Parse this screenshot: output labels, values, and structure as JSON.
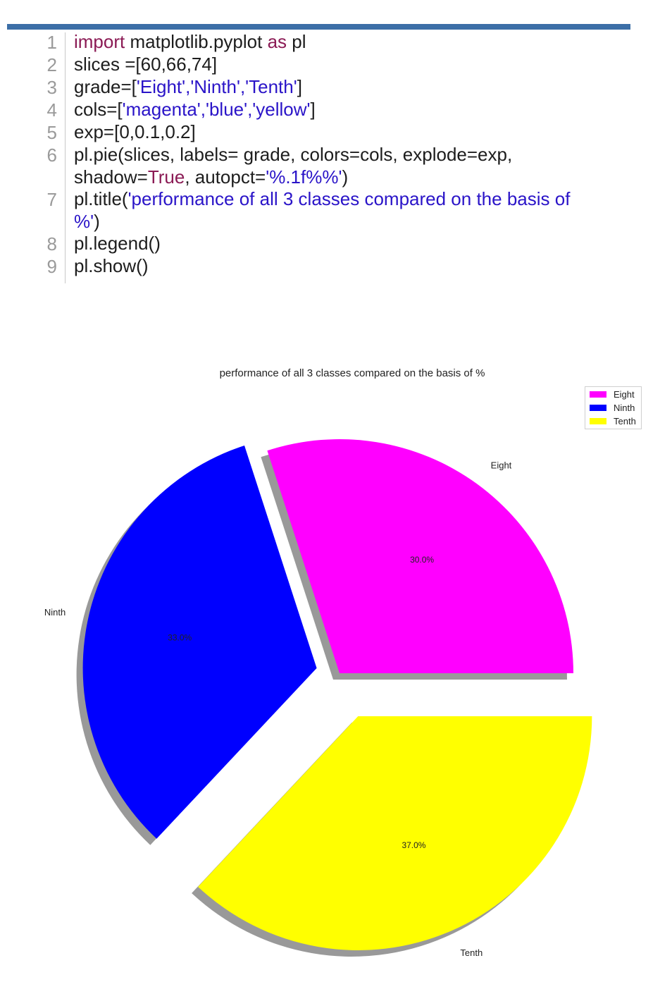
{
  "code": {
    "line_numbers": [
      "1",
      "2",
      "3",
      "4",
      "5",
      "6",
      "7",
      "8",
      "9"
    ],
    "lines": [
      [
        {
          "k": "kw",
          "t": "import"
        },
        {
          "k": "",
          "t": " matplotlib.pyplot "
        },
        {
          "k": "kw",
          "t": "as"
        },
        {
          "k": "",
          "t": " pl"
        }
      ],
      [
        {
          "k": "",
          "t": "slices =[60,66,74]"
        }
      ],
      [
        {
          "k": "",
          "t": "grade=["
        },
        {
          "k": "st",
          "t": "'Eight','Ninth','Tenth'"
        },
        {
          "k": "",
          "t": "]"
        }
      ],
      [
        {
          "k": "",
          "t": "cols=["
        },
        {
          "k": "st",
          "t": "'magenta','blue','yellow'"
        },
        {
          "k": "",
          "t": "]"
        }
      ],
      [
        {
          "k": "",
          "t": "exp=[0,0.1,0.2]"
        }
      ],
      [
        {
          "k": "",
          "t": "pl.pie(slices, labels= grade, colors=cols, explode=exp,\nshadow="
        },
        {
          "k": "kw",
          "t": "True"
        },
        {
          "k": "",
          "t": ", autopct="
        },
        {
          "k": "st",
          "t": "'%.1f%%'"
        },
        {
          "k": "",
          "t": ")"
        }
      ],
      [
        {
          "k": "",
          "t": "pl.title("
        },
        {
          "k": "st",
          "t": "'performance of all 3 classes compared on the basis of\n%'"
        },
        {
          "k": "",
          "t": ")"
        }
      ],
      [
        {
          "k": "",
          "t": "pl.legend()"
        }
      ],
      [
        {
          "k": "",
          "t": "pl.show()"
        }
      ]
    ]
  },
  "chart_data": {
    "type": "pie",
    "title": "performance of all 3 classes compared on the basis of %",
    "categories": [
      "Eight",
      "Ninth",
      "Tenth"
    ],
    "values": [
      60,
      66,
      74
    ],
    "autopct": [
      "30.0%",
      "33.0%",
      "37.0%"
    ],
    "colors": [
      "#ff00ff",
      "#0000ff",
      "#ffff00"
    ],
    "explode": [
      0,
      0.1,
      0.2
    ],
    "shadow": true,
    "legend": {
      "placement": "top-right",
      "entries": [
        "Eight",
        "Ninth",
        "Tenth"
      ]
    }
  }
}
